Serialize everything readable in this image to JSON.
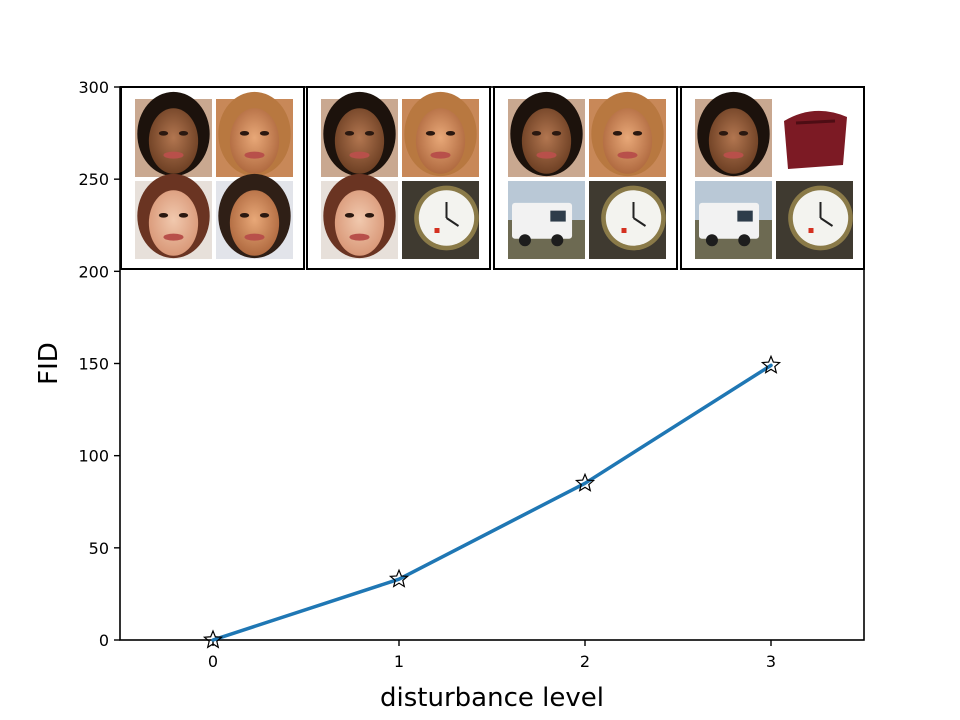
{
  "chart_data": {
    "type": "line",
    "title": "",
    "xlabel": "disturbance level",
    "ylabel": "FID",
    "x": [
      0,
      1,
      2,
      3
    ],
    "xticks": [
      "0",
      "1",
      "2",
      "3"
    ],
    "xlim": [
      -0.5,
      3.5
    ],
    "yticks": [
      "0",
      "50",
      "100",
      "150",
      "200",
      "250",
      "300"
    ],
    "ylim": [
      0,
      300
    ],
    "grid": false,
    "series": [
      {
        "values": [
          0,
          33,
          85,
          149
        ],
        "color": "#1f77b4",
        "marker": "star"
      }
    ],
    "inset_panels": [
      {
        "level": 0,
        "tiles": [
          "face-dark-hair",
          "face-blonde",
          "face-smiling-brunette",
          "face-man"
        ]
      },
      {
        "level": 1,
        "tiles": [
          "face-dark-hair",
          "face-blonde",
          "face-smiling-brunette",
          "clock-closeup"
        ]
      },
      {
        "level": 2,
        "tiles": [
          "face-dark-hair",
          "face-blonde",
          "camper-van",
          "clock-closeup"
        ]
      },
      {
        "level": 3,
        "tiles": [
          "face-dark-hair",
          "red-handbag",
          "camper-van",
          "clock-closeup"
        ]
      }
    ]
  }
}
